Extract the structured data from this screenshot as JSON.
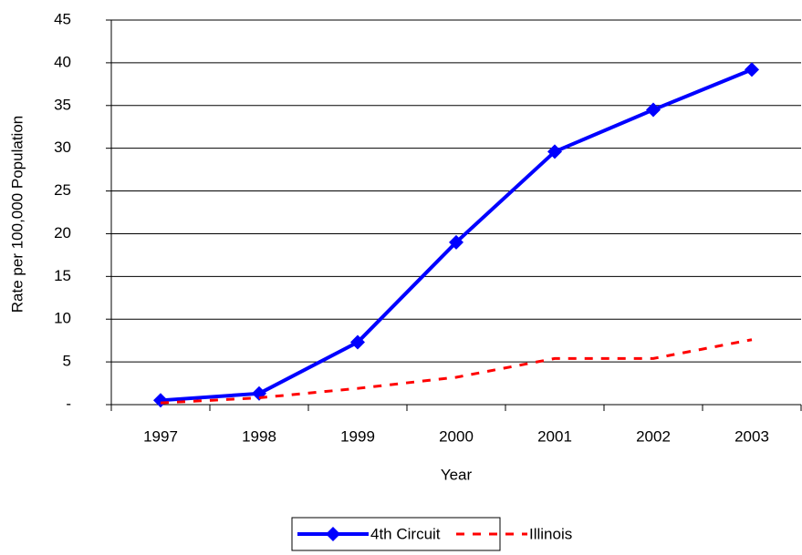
{
  "chart_data": {
    "type": "line",
    "x_label": "Year",
    "y_label": "Rate per 100,000 Population",
    "categories": [
      "1997",
      "1998",
      "1999",
      "2000",
      "2001",
      "2002",
      "2003"
    ],
    "series": [
      {
        "name": "4th Circuit",
        "color": "#0000ff",
        "line_style": "solid",
        "marker": "diamond",
        "values": [
          0.5,
          1.3,
          7.3,
          19,
          29.6,
          34.5,
          39.2
        ]
      },
      {
        "name": "Illinois",
        "color": "#ff0000",
        "line_style": "dashed",
        "marker": "none",
        "values": [
          0.2,
          0.8,
          1.9,
          3.2,
          5.4,
          5.4,
          7.6
        ]
      }
    ],
    "ylim": [
      0,
      45
    ],
    "yticks": [
      {
        "value": 0,
        "label": "-"
      },
      5,
      10,
      15,
      20,
      25,
      30,
      35,
      40,
      45
    ],
    "grid": true,
    "legend": "bottom"
  }
}
